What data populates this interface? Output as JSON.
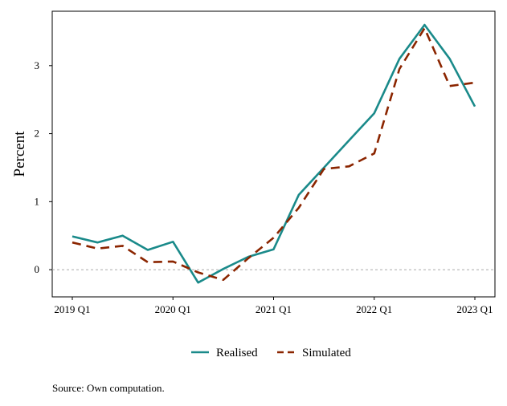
{
  "chart_data": {
    "type": "line",
    "ylabel": "Percent",
    "xlabel": "",
    "x": [
      "2019 Q1",
      "2019 Q2",
      "2019 Q3",
      "2019 Q4",
      "2020 Q1",
      "2020 Q2",
      "2020 Q3",
      "2020 Q4",
      "2021 Q1",
      "2021 Q2",
      "2021 Q3",
      "2021 Q4",
      "2022 Q1",
      "2022 Q2",
      "2022 Q3",
      "2022 Q4",
      "2023 Q1"
    ],
    "x_tick_labels": [
      "2019 Q1",
      "2020 Q1",
      "2021 Q1",
      "2022 Q1",
      "2023 Q1"
    ],
    "y_ticks": [
      0,
      1,
      2,
      3
    ],
    "ylim": [
      -0.4,
      3.8
    ],
    "reference_line": 0,
    "series": [
      {
        "name": "Realised",
        "style": "solid",
        "color": "#1a8a8a",
        "values": [
          0.49,
          0.4,
          0.5,
          0.29,
          0.41,
          -0.19,
          0.01,
          0.19,
          0.3,
          1.1,
          1.5,
          1.9,
          2.3,
          3.1,
          3.6,
          3.1,
          2.4
        ]
      },
      {
        "name": "Simulated",
        "style": "dashed",
        "color": "#8b2500",
        "values": [
          0.4,
          0.31,
          0.35,
          0.11,
          0.12,
          -0.04,
          -0.15,
          0.17,
          0.47,
          0.91,
          1.48,
          1.52,
          1.71,
          2.95,
          3.55,
          2.7,
          2.75
        ]
      }
    ],
    "legend_position": "bottom",
    "grid": false
  },
  "source_note": "Source: Own computation."
}
